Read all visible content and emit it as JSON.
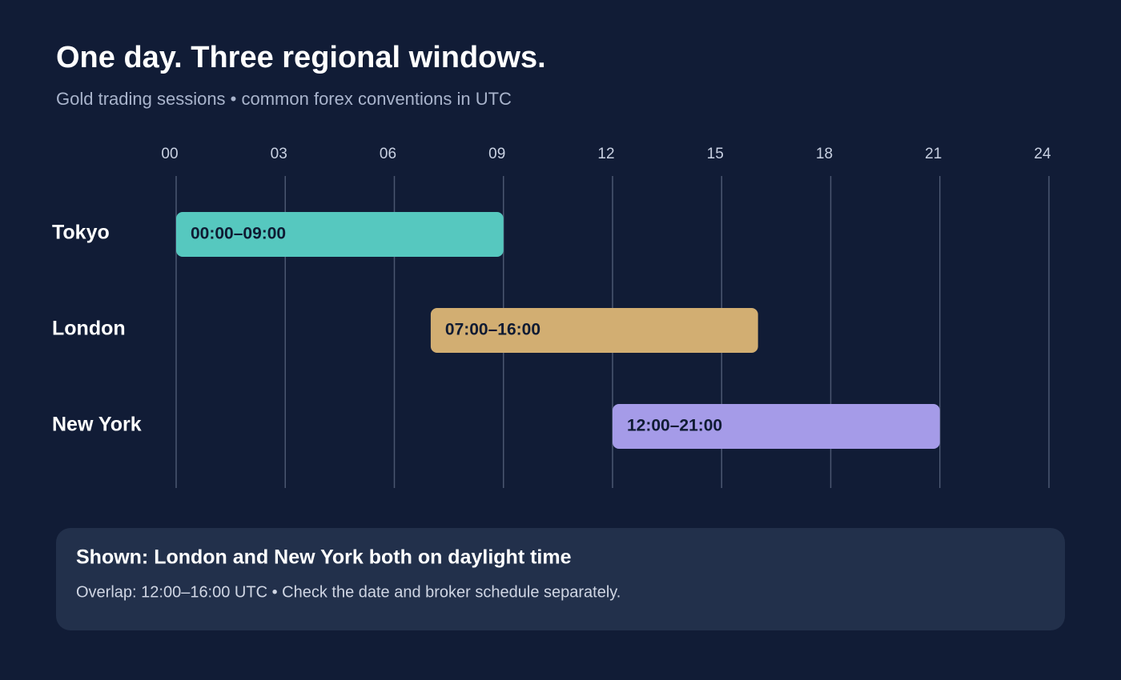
{
  "chart_data": {
    "type": "range-bar",
    "title": "One day. Three regional windows.",
    "subtitle": "Gold trading sessions • common forex conventions in UTC",
    "categories": [
      "Tokyo",
      "London",
      "New York"
    ],
    "starts": [
      0,
      7,
      12
    ],
    "ends": [
      9,
      16,
      21
    ],
    "value_labels": [
      "00:00–09:00",
      "07:00–16:00",
      "12:00–21:00"
    ],
    "colors": [
      "#56c8bf",
      "#d2ae72",
      "#a59be8"
    ],
    "xlim": [
      0,
      24
    ],
    "xticks": [
      {
        "value": 0,
        "label": "00"
      },
      {
        "value": 3,
        "label": "03"
      },
      {
        "value": 6,
        "label": "06"
      },
      {
        "value": 9,
        "label": "09"
      },
      12,
      15,
      18,
      21,
      24
    ],
    "grid": true,
    "note": {
      "title": "Shown: London and New York both on daylight time",
      "text": "Overlap: 12:00–16:00 UTC • Check the date and broker schedule separately."
    }
  }
}
